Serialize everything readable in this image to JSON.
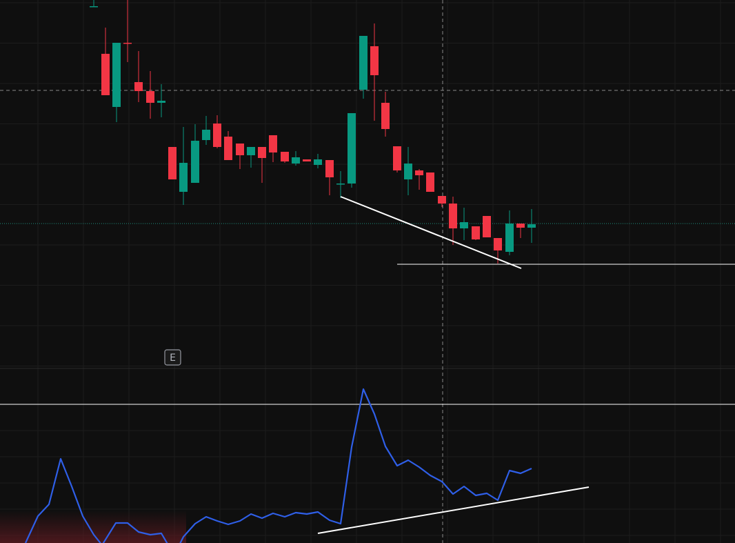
{
  "marker": {
    "label": "E"
  }
}
